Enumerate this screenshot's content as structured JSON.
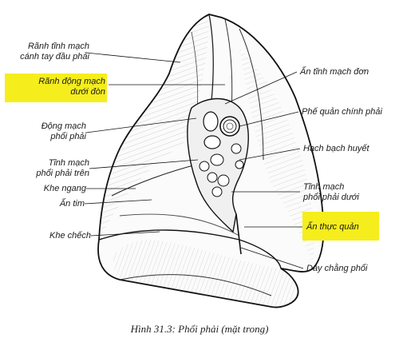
{
  "caption": "Hình 31.3: Phổi phải (mặt trong)",
  "highlight_color": "#f5ee1c",
  "labels": {
    "ranh_tinh_mach_1": "Rãnh tĩnh mạch",
    "ranh_tinh_mach_2": "cánh tay đầu phải",
    "ranh_dong_mach_1": "Rãnh động mạch",
    "ranh_dong_mach_2": "dưới đòn",
    "dong_mach_1": "Động mạch",
    "dong_mach_2": "phổi phải",
    "tinh_mach_tren_1": "Tĩnh mạch",
    "tinh_mach_tren_2": "phổi phải trên",
    "khe_ngang": "Khe ngang",
    "an_tim": "Ấn tim",
    "khe_chech": "Khe chếch",
    "an_tinh_mach_don": "Ấn tĩnh mạch đơn",
    "phe_quan": "Phế quản chính phải",
    "hach_bach_huyet": "Hạch bạch huyết",
    "tinh_mach_duoi_1": "Tĩnh mạch",
    "tinh_mach_duoi_2": "phổi phải dưới",
    "an_thuc_quan": "Ấn thực quản",
    "day_chang_phoi": "Dây chằng phổi"
  }
}
